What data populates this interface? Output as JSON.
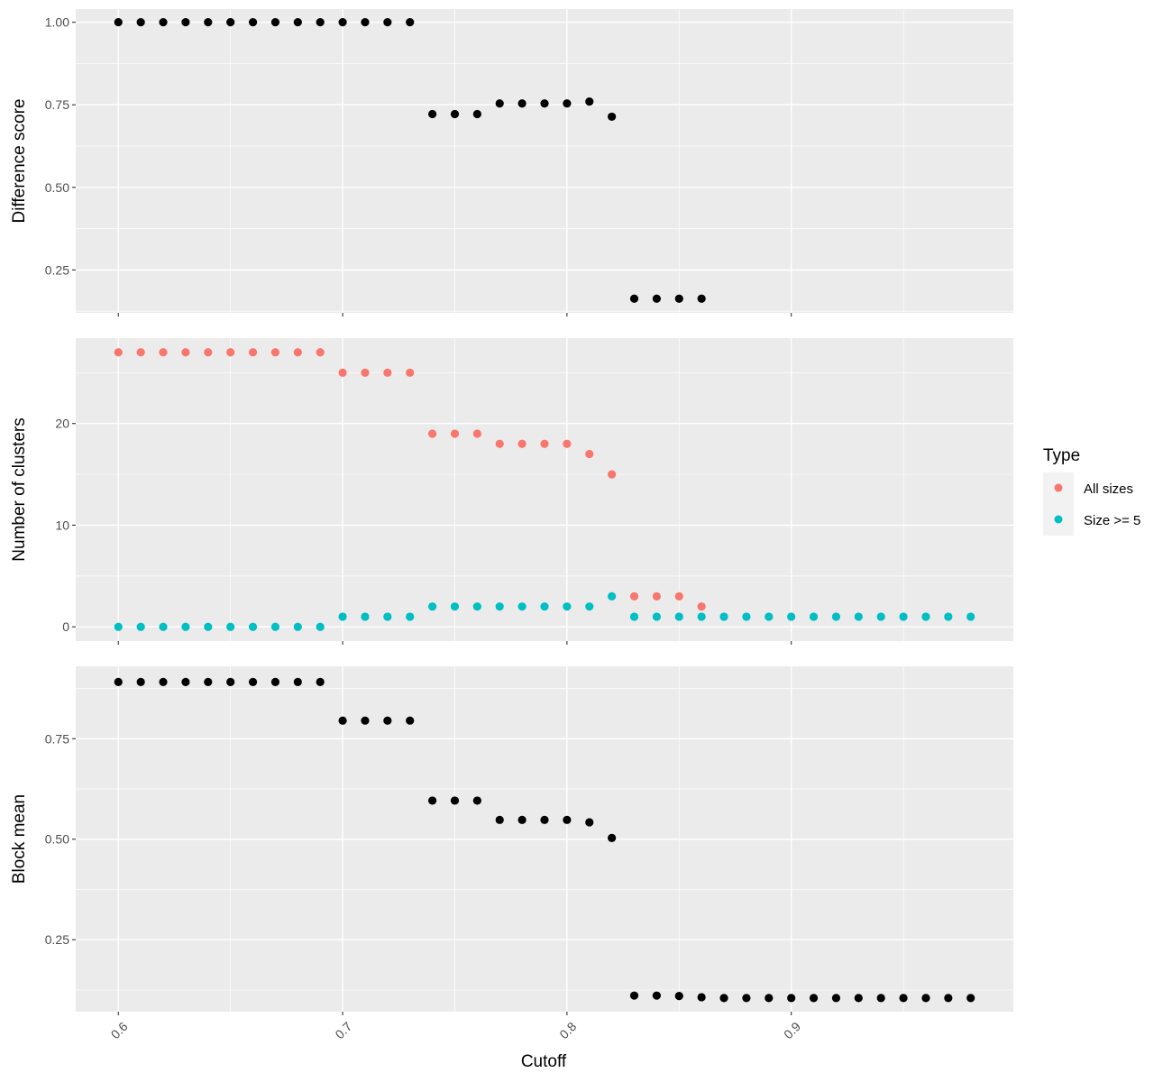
{
  "colors": {
    "black": "#000000",
    "all_sizes": "#F8766D",
    "size_ge_5": "#00BFC4"
  },
  "chart_data": [
    {
      "type": "scatter",
      "title": "",
      "xlabel": "",
      "ylabel": "Difference score",
      "xlim": [
        0.581,
        0.999
      ],
      "ylim": [
        0.12,
        1.04
      ],
      "x_ticks": [
        0.6,
        0.7,
        0.8,
        0.9
      ],
      "y_ticks": [
        0.25,
        0.5,
        0.75,
        1.0
      ],
      "y_tick_labels": [
        "0.25",
        "0.50",
        "0.75",
        "1.00"
      ],
      "grid": true,
      "series": [
        {
          "color": "#000000",
          "x": [
            0.6,
            0.61,
            0.62,
            0.63,
            0.64,
            0.65,
            0.66,
            0.67,
            0.68,
            0.69,
            0.7,
            0.71,
            0.72,
            0.73,
            0.74,
            0.75,
            0.76,
            0.77,
            0.78,
            0.79,
            0.8,
            0.81,
            0.82,
            0.83,
            0.84,
            0.85,
            0.86
          ],
          "y": [
            1,
            1,
            1,
            1,
            1,
            1,
            1,
            1,
            1,
            1,
            1,
            1,
            1,
            1,
            0.722,
            0.722,
            0.722,
            0.754,
            0.754,
            0.754,
            0.754,
            0.76,
            0.714,
            0.163,
            0.163,
            0.163,
            0.163
          ]
        }
      ]
    },
    {
      "type": "scatter",
      "title": "",
      "xlabel": "",
      "ylabel": "Number of clusters",
      "xlim": [
        0.581,
        0.999
      ],
      "ylim": [
        -1.4,
        28.4
      ],
      "x_ticks": [
        0.6,
        0.7,
        0.8,
        0.9
      ],
      "y_ticks": [
        0,
        10,
        20
      ],
      "y_tick_labels": [
        "0",
        "10",
        "20"
      ],
      "grid": true,
      "legend": {
        "title": "Type",
        "placement": "right",
        "items": [
          {
            "label": "All sizes",
            "color": "#F8766D"
          },
          {
            "label": "Size >= 5",
            "color": "#00BFC4"
          }
        ]
      },
      "series": [
        {
          "name": "All sizes",
          "color": "#F8766D",
          "x": [
            0.6,
            0.61,
            0.62,
            0.63,
            0.64,
            0.65,
            0.66,
            0.67,
            0.68,
            0.69,
            0.7,
            0.71,
            0.72,
            0.73,
            0.74,
            0.75,
            0.76,
            0.77,
            0.78,
            0.79,
            0.8,
            0.81,
            0.82,
            0.83,
            0.84,
            0.85,
            0.86
          ],
          "y": [
            27,
            27,
            27,
            27,
            27,
            27,
            27,
            27,
            27,
            27,
            25,
            25,
            25,
            25,
            19,
            19,
            19,
            18,
            18,
            18,
            18,
            17,
            15,
            3,
            3,
            3,
            2
          ]
        },
        {
          "name": "Size >= 5",
          "color": "#00BFC4",
          "x": [
            0.6,
            0.61,
            0.62,
            0.63,
            0.64,
            0.65,
            0.66,
            0.67,
            0.68,
            0.69,
            0.7,
            0.71,
            0.72,
            0.73,
            0.74,
            0.75,
            0.76,
            0.77,
            0.78,
            0.79,
            0.8,
            0.81,
            0.82,
            0.83,
            0.84,
            0.85,
            0.86,
            0.87,
            0.88,
            0.89,
            0.9,
            0.91,
            0.92,
            0.93,
            0.94,
            0.95,
            0.96,
            0.97,
            0.98
          ],
          "y": [
            0,
            0,
            0,
            0,
            0,
            0,
            0,
            0,
            0,
            0,
            1,
            1,
            1,
            1,
            2,
            2,
            2,
            2,
            2,
            2,
            2,
            2,
            3,
            1,
            1,
            1,
            1,
            1,
            1,
            1,
            1,
            1,
            1,
            1,
            1,
            1,
            1,
            1,
            1
          ]
        }
      ]
    },
    {
      "type": "scatter",
      "title": "",
      "xlabel": "Cutoff",
      "ylabel": "Block mean",
      "xlim": [
        0.581,
        0.999
      ],
      "ylim": [
        0.071,
        0.93
      ],
      "x_ticks": [
        0.6,
        0.7,
        0.8,
        0.9
      ],
      "x_tick_labels": [
        "0.6",
        "0.7",
        "0.8",
        "0.9"
      ],
      "y_ticks": [
        0.25,
        0.5,
        0.75
      ],
      "y_tick_labels": [
        "0.25",
        "0.50",
        "0.75"
      ],
      "grid": true,
      "series": [
        {
          "color": "#000000",
          "x": [
            0.6,
            0.61,
            0.62,
            0.63,
            0.64,
            0.65,
            0.66,
            0.67,
            0.68,
            0.69,
            0.7,
            0.71,
            0.72,
            0.73,
            0.74,
            0.75,
            0.76,
            0.77,
            0.78,
            0.79,
            0.8,
            0.81,
            0.82,
            0.83,
            0.84,
            0.85,
            0.86,
            0.87,
            0.88,
            0.89,
            0.9,
            0.91,
            0.92,
            0.93,
            0.94,
            0.95,
            0.96,
            0.97,
            0.98
          ],
          "y": [
            0.891,
            0.891,
            0.891,
            0.891,
            0.891,
            0.891,
            0.891,
            0.891,
            0.891,
            0.891,
            0.795,
            0.795,
            0.795,
            0.795,
            0.596,
            0.596,
            0.596,
            0.548,
            0.548,
            0.548,
            0.548,
            0.542,
            0.503,
            0.111,
            0.111,
            0.11,
            0.107,
            0.105,
            0.105,
            0.105,
            0.105,
            0.105,
            0.105,
            0.105,
            0.105,
            0.105,
            0.105,
            0.105,
            0.105
          ]
        }
      ]
    }
  ]
}
